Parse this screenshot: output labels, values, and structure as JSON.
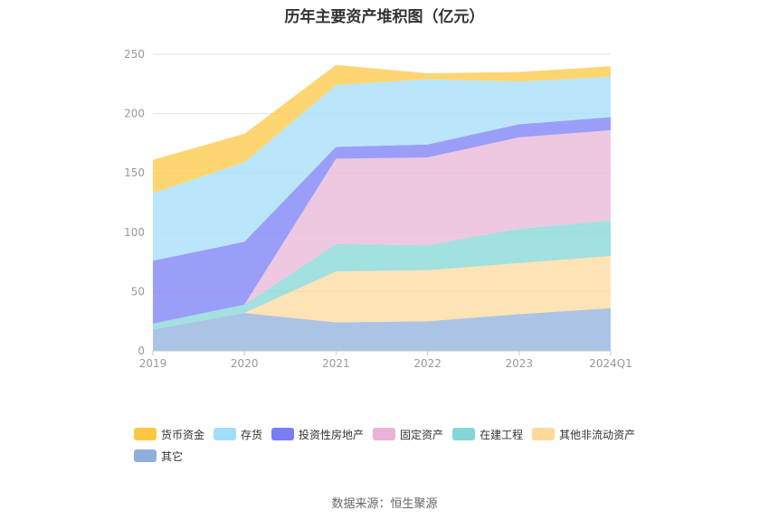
{
  "chart_data": {
    "type": "area",
    "title": "历年主要资产堆积图（亿元）",
    "categories": [
      "2019",
      "2020",
      "2021",
      "2022",
      "2023",
      "2024Q1"
    ],
    "ylim": [
      0,
      250
    ],
    "yticks": [
      "0",
      "50",
      "100",
      "150",
      "200",
      "250"
    ],
    "stacked": true,
    "grid": true,
    "legend_position": "bottom",
    "series": [
      {
        "name": "其它",
        "color": "#8fb0dc",
        "values": [
          18,
          32,
          24,
          25,
          31,
          36
        ]
      },
      {
        "name": "其他非流动资产",
        "color": "#fdd99b",
        "values": [
          0,
          0,
          43,
          43,
          43,
          44
        ]
      },
      {
        "name": "在建工程",
        "color": "#84d6d6",
        "values": [
          5,
          7,
          23,
          21,
          29,
          30
        ]
      },
      {
        "name": "固定资产",
        "color": "#e8b5d6",
        "values": [
          0,
          0,
          72,
          74,
          77,
          76
        ]
      },
      {
        "name": "投资性房地产",
        "color": "#7a7ef5",
        "values": [
          53,
          53,
          10,
          11,
          11,
          11
        ]
      },
      {
        "name": "存货",
        "color": "#a3def9",
        "values": [
          57,
          67,
          52,
          55,
          36,
          34
        ]
      },
      {
        "name": "货币资金",
        "color": "#fcc843",
        "values": [
          28,
          24,
          17,
          5,
          8,
          9
        ]
      }
    ],
    "legend_order": [
      "货币资金",
      "存货",
      "投资性房地产",
      "固定资产",
      "在建工程",
      "其他非流动资产",
      "其它"
    ]
  },
  "source": "数据来源：恒生聚源"
}
